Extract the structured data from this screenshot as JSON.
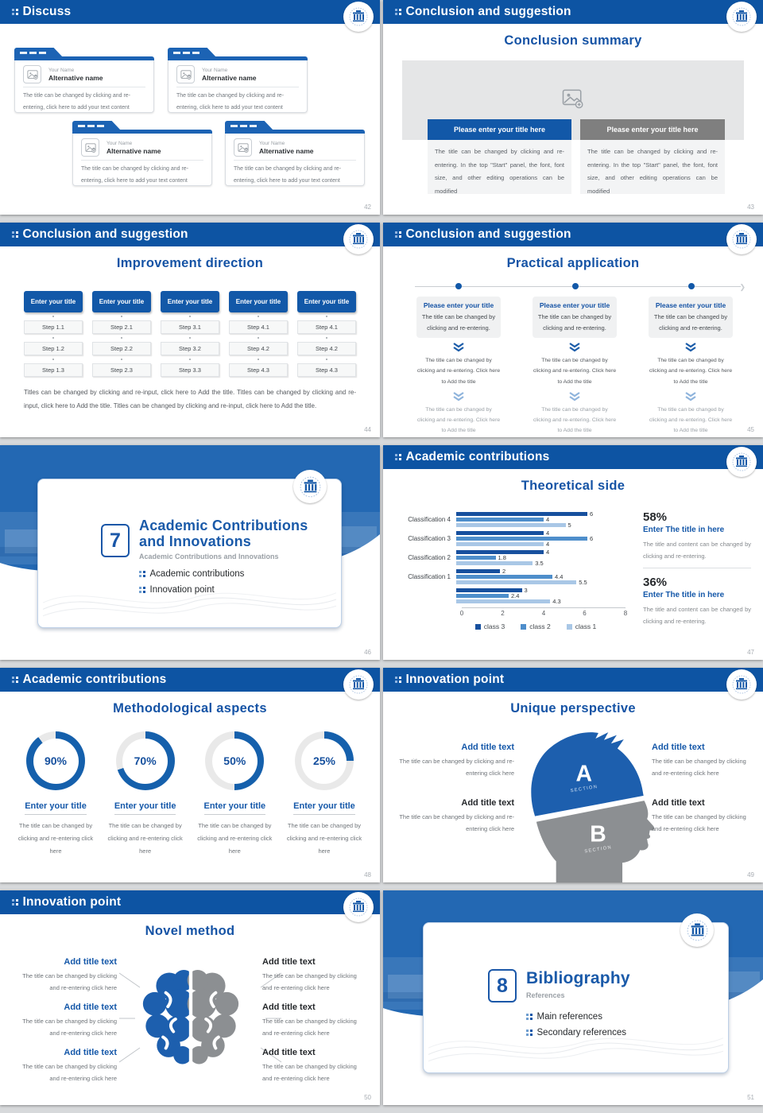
{
  "colors": {
    "header_bar": "#0d54a3",
    "accent_blue": "#1558a9",
    "title_blue": "#1553a5",
    "gray_bar": "#7f7f7f",
    "section_bg": "#2368b3",
    "donut_blue": "#1560ac",
    "donut_track": "#e9e9e9",
    "bar_class3": "#17509e",
    "bar_class2": "#4e8ecb",
    "bar_class1": "#a9c7e6"
  },
  "chart_data": {
    "type": "bar",
    "orientation": "horizontal-grouped",
    "title": "Theoretical side",
    "categories": [
      "Classification 4",
      "Classification 3",
      "Classification 2",
      "Classification 1",
      ""
    ],
    "series": [
      {
        "name": "class 3",
        "color": "#17509e",
        "values": [
          6,
          4,
          4,
          2,
          3
        ]
      },
      {
        "name": "class 2",
        "color": "#4e8ecb",
        "values": [
          4,
          6,
          1.8,
          4.4,
          2.4
        ]
      },
      {
        "name": "class 1",
        "color": "#a9c7e6",
        "values": [
          5,
          4,
          3.5,
          5.5,
          4.3
        ]
      }
    ],
    "xlim": [
      0,
      8
    ],
    "xticks": [
      0,
      2,
      4,
      6,
      8
    ],
    "grid": false,
    "legend_position": "bottom"
  },
  "slides": {
    "discuss": {
      "header": "Discuss",
      "page": "42",
      "card": {
        "name_label": "Your Name",
        "alt_name": "Alternative name",
        "body": "The title can be changed by clicking and re-entering, click here to add your text content"
      }
    },
    "summary": {
      "header": "Conclusion and suggestion",
      "title": "Conclusion summary",
      "page": "43",
      "blue_bar": "Please enter your title here",
      "gray_bar": "Please enter your title here",
      "body": "The title can be changed by clicking and re-entering. In the top \"Start\" panel, the font, font size, and other editing operations can be modified"
    },
    "improvement": {
      "header": "Conclusion and suggestion",
      "title": "Improvement direction",
      "page": "44",
      "column_header": "Enter your title",
      "columns": [
        [
          "Step 1.1",
          "Step 1.2",
          "Step 1.3"
        ],
        [
          "Step 2.1",
          "Step 2.2",
          "Step 2.3"
        ],
        [
          "Step 3.1",
          "Step 3.2",
          "Step 3.3"
        ],
        [
          "Step 4.1",
          "Step 4.2",
          "Step 4.3"
        ],
        [
          "Step 4.1",
          "Step 4.2",
          "Step 4.3"
        ]
      ],
      "footer": "Titles can be changed by clicking and re-input, click here to Add the title. Titles can be changed by clicking and re-input, click here to Add the title. Titles can be changed by clicking and re-input, click here to Add the title."
    },
    "practical": {
      "header": "Conclusion and suggestion",
      "title": "Practical application",
      "page": "45",
      "item_title": "Please enter your title",
      "item_card_body": "The title can be changed by clicking and re-entering.",
      "step_text": "The title can be changed by clicking and re-entering. Click here to Add the title"
    },
    "section7": {
      "number": "7",
      "title_line1": "Academic Contributions",
      "title_line2": "and Innovations",
      "subtitle": "Academic Contributions and Innovations",
      "bullet1": "Academic contributions",
      "bullet2": "Innovation point",
      "page": "46"
    },
    "theoretical": {
      "header": "Academic contributions",
      "title": "Theoretical side",
      "page": "47",
      "stat1": {
        "pct": "58%",
        "title": "Enter The title in here",
        "body": "The title and content can be changed by clicking and re-entering."
      },
      "stat2": {
        "pct": "36%",
        "title": "Enter The title in here",
        "body": "The title and content can be changed by clicking and re-entering."
      }
    },
    "methodological": {
      "header": "Academic contributions",
      "title": "Methodological aspects",
      "page": "48",
      "donuts": [
        {
          "pct": 90,
          "label": "90%",
          "title": "Enter your title",
          "body": "The title can be changed by clicking and re-entering click here"
        },
        {
          "pct": 70,
          "label": "70%",
          "title": "Enter your title",
          "body": "The title can be changed by clicking and re-entering click here"
        },
        {
          "pct": 50,
          "label": "50%",
          "title": "Enter your title",
          "body": "The title can be changed by clicking and re-entering click here"
        },
        {
          "pct": 25,
          "label": "25%",
          "title": "Enter your title",
          "body": "The title can be changed by clicking and re-entering click here"
        }
      ]
    },
    "unique": {
      "header": "Innovation point",
      "title": "Unique perspective",
      "page": "49",
      "section_a": "A",
      "section_a_sub": "SECTION",
      "section_b": "B",
      "section_b_sub": "SECTION",
      "block_title": "Add title text",
      "block_body": "The title can be changed by clicking and re-entering click here"
    },
    "novel": {
      "header": "Innovation point",
      "title": "Novel method",
      "page": "50",
      "block_title": "Add title text",
      "block_body": "The title can be changed by clicking and re-entering click here"
    },
    "section8": {
      "number": "8",
      "title": "Bibliography",
      "subtitle": "References",
      "bullet1": "Main references",
      "bullet2": "Secondary references",
      "page": "51"
    }
  }
}
